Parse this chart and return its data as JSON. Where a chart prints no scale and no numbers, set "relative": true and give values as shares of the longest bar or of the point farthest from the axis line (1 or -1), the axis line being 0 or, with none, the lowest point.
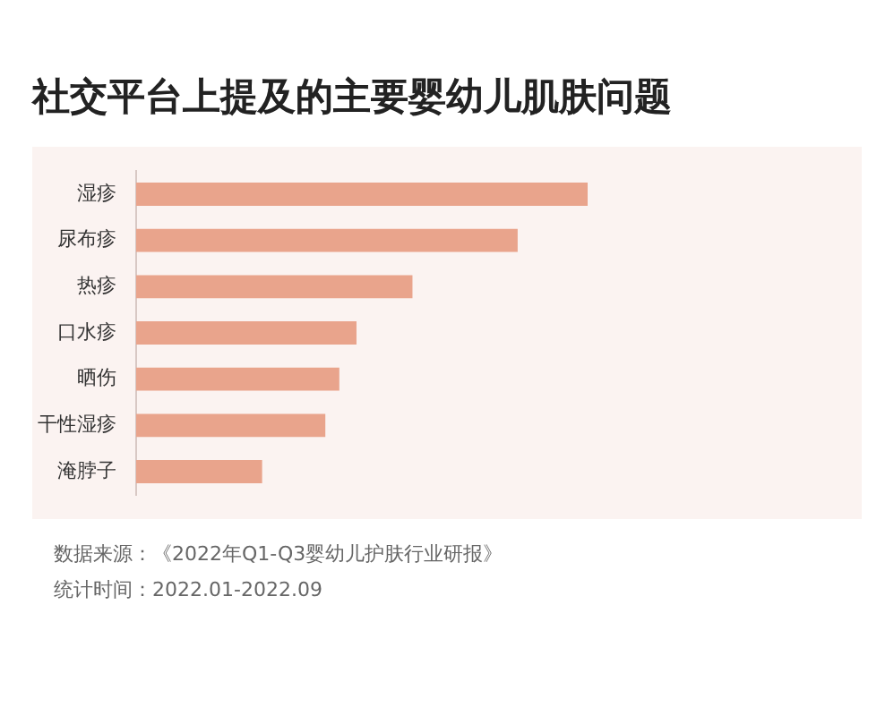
{
  "chart_data": {
    "type": "bar",
    "orientation": "horizontal",
    "relative": true,
    "title": "社交平台上提及的主要婴幼儿肌肤问题",
    "categories": [
      "湿疹",
      "尿布疹",
      "热疹",
      "口水疹",
      "晒伤",
      "干性湿疹",
      "淹脖子"
    ],
    "values": [
      1,
      0.845,
      0.612,
      0.488,
      0.45,
      0.419,
      0.279
    ],
    "color": "#e9a48c",
    "annotations": [
      "数据来源：《2022年Q1-Q3婴幼儿护肤行业研报》",
      "统计时间：2022.01-2022.09"
    ]
  }
}
